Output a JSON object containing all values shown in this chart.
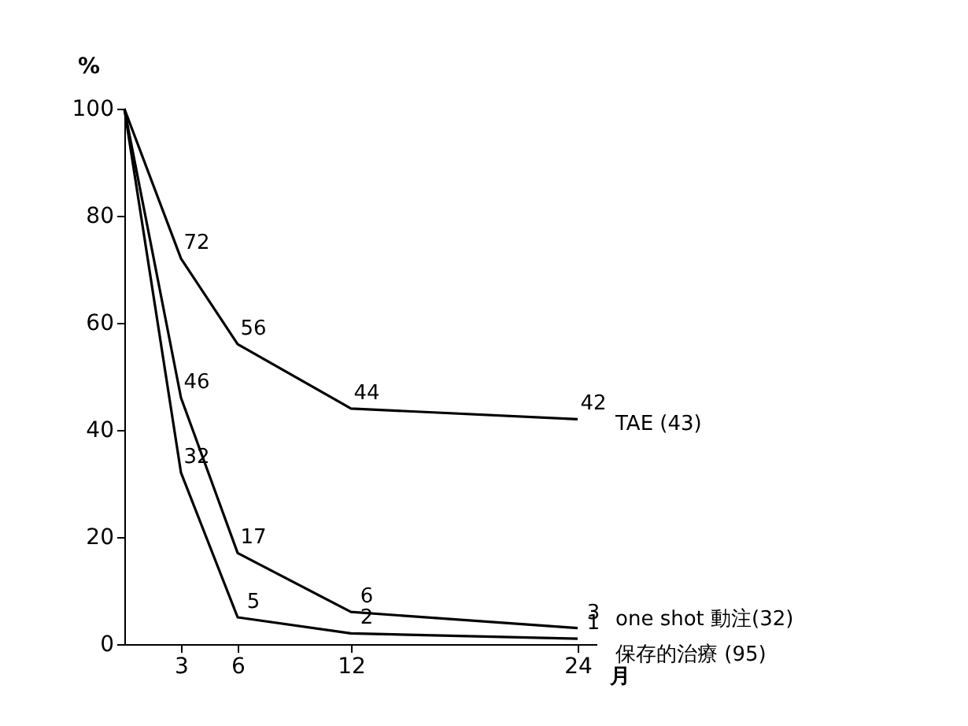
{
  "chart_data": {
    "type": "line",
    "xlabel": "月",
    "ylabel": "%",
    "x": [
      0,
      3,
      6,
      12,
      24
    ],
    "xlim": [
      0,
      25
    ],
    "xticks": [
      3,
      6,
      12,
      24
    ],
    "ylim": [
      0,
      100
    ],
    "yticks": [
      0,
      20,
      40,
      60,
      80,
      100
    ],
    "grid": false,
    "legend": false,
    "line_style": "solid",
    "marker": "none",
    "series": [
      {
        "name": "TAE (43)",
        "color": "#000000",
        "values": [
          100,
          72,
          56,
          44,
          42
        ],
        "value_labels": [
          null,
          "72",
          "56",
          "44",
          "42"
        ]
      },
      {
        "name": "one shot 動注(32)",
        "color": "#000000",
        "values": [
          100,
          46,
          17,
          6,
          3
        ],
        "value_labels": [
          null,
          "46",
          "17",
          "6",
          "3"
        ]
      },
      {
        "name": "保存的治療 (95)",
        "color": "#000000",
        "values": [
          100,
          32,
          5,
          2,
          1
        ],
        "value_labels": [
          null,
          "32",
          "5",
          "2",
          "1"
        ]
      }
    ]
  }
}
